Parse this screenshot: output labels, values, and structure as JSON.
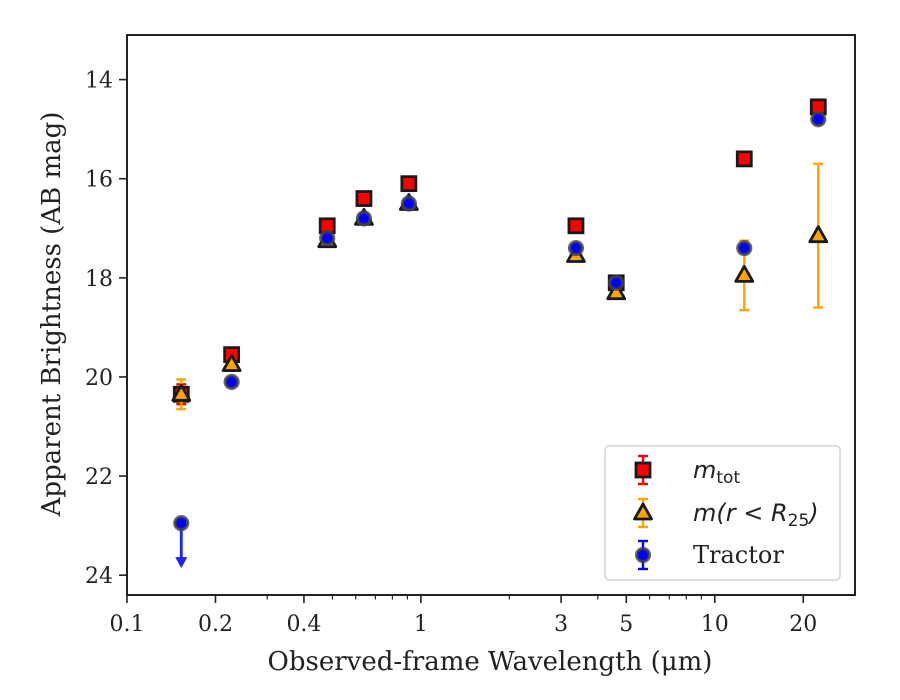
{
  "chart_data": {
    "type": "scatter",
    "xscale": "log",
    "xlabel": "Observed-frame Wavelength (μm)",
    "ylabel": "Apparent Brightness (AB mag)",
    "xlim": [
      0.1,
      30
    ],
    "ylim": [
      24.4,
      13.1
    ],
    "y_inverted": true,
    "grid": false,
    "legend_position": "lower-right",
    "xticks": [
      0.1,
      0.2,
      0.4,
      1,
      3,
      5,
      10,
      20
    ],
    "xtick_labels": [
      "0.1",
      "0.2",
      "0.4",
      "1",
      "3",
      "5",
      "10",
      "20"
    ],
    "yticks": [
      14,
      16,
      18,
      20,
      22,
      24
    ],
    "ytick_labels": [
      "14",
      "16",
      "18",
      "20",
      "22",
      "24"
    ],
    "series": [
      {
        "name": "m_tot",
        "legend_main": "m",
        "legend_sub": "tot",
        "marker": "square",
        "color": "#ff0000",
        "edgecolor": "#1a1a1a",
        "points": [
          {
            "x": 0.153,
            "y": 20.35,
            "yerr": 0.2
          },
          {
            "x": 0.227,
            "y": 19.55,
            "yerr": 0.05
          },
          {
            "x": 0.48,
            "y": 16.95,
            "yerr": 0
          },
          {
            "x": 0.64,
            "y": 16.4,
            "yerr": 0
          },
          {
            "x": 0.91,
            "y": 16.1,
            "yerr": 0
          },
          {
            "x": 3.37,
            "y": 16.95,
            "yerr": 0
          },
          {
            "x": 4.62,
            "y": 18.1,
            "yerr": 0
          },
          {
            "x": 12.6,
            "y": 15.6,
            "yerr": 0
          },
          {
            "x": 22.5,
            "y": 14.55,
            "yerr": 0
          }
        ]
      },
      {
        "name": "m(r < R_25)",
        "legend_main": "m(r < R",
        "legend_sub": "25",
        "legend_close": ")",
        "marker": "triangle",
        "color": "#ffa500",
        "edgecolor": "#1a1a1a",
        "points": [
          {
            "x": 0.153,
            "y": 20.35,
            "yerr": 0.3
          },
          {
            "x": 0.227,
            "y": 19.75,
            "yerr": 0.05
          },
          {
            "x": 0.48,
            "y": 17.25,
            "yerr": 0
          },
          {
            "x": 0.64,
            "y": 16.8,
            "yerr": 0
          },
          {
            "x": 0.91,
            "y": 16.5,
            "yerr": 0
          },
          {
            "x": 3.37,
            "y": 17.55,
            "yerr": 0
          },
          {
            "x": 4.62,
            "y": 18.3,
            "yerr": 0
          },
          {
            "x": 12.6,
            "y": 17.95,
            "yerr": 0.7
          },
          {
            "x": 22.5,
            "y": 17.15,
            "yerr": 1.45
          }
        ]
      },
      {
        "name": "Tractor",
        "marker": "circle",
        "color": "#0000ff",
        "edgecolor": "#1a1a1a",
        "points": [
          {
            "x": 0.153,
            "y": 22.95,
            "yerr": 0,
            "upper_limit": true
          },
          {
            "x": 0.227,
            "y": 20.1,
            "yerr": 0
          },
          {
            "x": 0.48,
            "y": 17.2,
            "yerr": 0
          },
          {
            "x": 0.64,
            "y": 16.8,
            "yerr": 0
          },
          {
            "x": 0.91,
            "y": 16.5,
            "yerr": 0
          },
          {
            "x": 3.37,
            "y": 17.4,
            "yerr": 0
          },
          {
            "x": 4.62,
            "y": 18.1,
            "yerr": 0
          },
          {
            "x": 12.6,
            "y": 17.4,
            "yerr": 0
          },
          {
            "x": 22.5,
            "y": 14.8,
            "yerr": 0
          }
        ]
      }
    ]
  }
}
